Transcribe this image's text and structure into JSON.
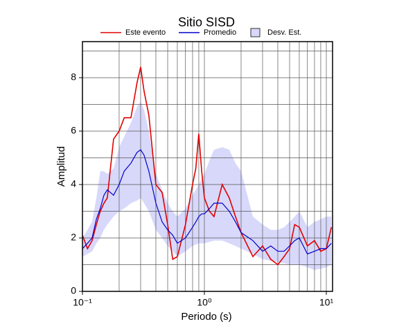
{
  "chart_data": {
    "type": "line",
    "title": "Sitio SISD",
    "x_label": "Periodo (s)",
    "y_label": "Amplitud",
    "x_scale": "log",
    "grid": true,
    "xlim": [
      0.1,
      11.25
    ],
    "ylim": [
      0,
      9.35
    ],
    "xticks": [
      {
        "value": 0.1,
        "label": "10⁻¹"
      },
      {
        "value": 1,
        "label": "10⁰"
      },
      {
        "value": 10,
        "label": "10¹"
      }
    ],
    "x_minor_ticks": [
      0.2,
      0.3,
      0.4,
      0.5,
      0.6,
      0.7,
      0.8,
      0.9,
      2,
      3,
      4,
      5,
      6,
      7,
      8,
      9
    ],
    "yticks": [
      0,
      2,
      4,
      6,
      8
    ],
    "y_minor_ticks": [
      1,
      3,
      5,
      7,
      9
    ],
    "x": [
      0.1,
      0.11,
      0.12,
      0.13,
      0.14,
      0.15,
      0.16,
      0.18,
      0.2,
      0.22,
      0.25,
      0.28,
      0.3,
      0.32,
      0.35,
      0.4,
      0.45,
      0.5,
      0.55,
      0.6,
      0.7,
      0.8,
      0.85,
      0.9,
      0.95,
      1.0,
      1.1,
      1.2,
      1.4,
      1.6,
      1.8,
      2.0,
      2.5,
      3.0,
      3.5,
      4.0,
      4.5,
      5.0,
      5.5,
      6.0,
      7.0,
      8.0,
      9.0,
      10.0,
      11.0
    ],
    "series": [
      {
        "name": "Este evento",
        "color": "#e00000",
        "values": [
          2.1,
          1.6,
          1.9,
          2.5,
          3.0,
          3.3,
          3.5,
          5.7,
          6.0,
          6.5,
          6.5,
          7.8,
          8.4,
          7.5,
          6.6,
          4.0,
          3.7,
          2.5,
          1.2,
          1.3,
          2.5,
          4.0,
          4.6,
          5.9,
          4.5,
          3.5,
          3.0,
          2.8,
          4.0,
          3.5,
          2.8,
          2.2,
          1.3,
          1.7,
          1.2,
          1.0,
          1.3,
          1.6,
          2.5,
          2.4,
          1.7,
          1.9,
          1.5,
          1.6,
          2.4
        ]
      },
      {
        "name": "Promedio",
        "color": "#0000cc",
        "values": [
          1.6,
          1.8,
          2.0,
          2.7,
          3.1,
          3.6,
          3.8,
          3.6,
          4.0,
          4.5,
          4.8,
          5.2,
          5.3,
          5.1,
          4.5,
          3.3,
          2.6,
          2.3,
          2.1,
          1.8,
          2.0,
          2.4,
          2.6,
          2.8,
          2.9,
          2.9,
          3.1,
          3.3,
          3.3,
          3.0,
          2.6,
          2.2,
          1.9,
          1.5,
          1.7,
          1.5,
          1.5,
          1.7,
          1.9,
          2.0,
          1.4,
          1.5,
          1.6,
          1.6,
          1.8
        ]
      }
    ],
    "band": {
      "name": "Desv. Est.",
      "color": "#d8d8fb",
      "lower": [
        1.3,
        1.4,
        1.5,
        1.8,
        2.0,
        2.3,
        2.5,
        2.8,
        3.0,
        3.1,
        3.3,
        3.4,
        3.5,
        3.3,
        3.0,
        2.3,
        2.0,
        1.7,
        1.5,
        1.3,
        1.5,
        1.7,
        1.75,
        1.8,
        1.8,
        1.8,
        1.85,
        1.9,
        1.9,
        1.8,
        1.7,
        1.6,
        1.4,
        1.2,
        1.15,
        1.1,
        1.05,
        1.0,
        1.0,
        1.0,
        0.9,
        0.8,
        0.85,
        0.9,
        1.0
      ],
      "upper": [
        2.0,
        2.3,
        2.6,
        3.5,
        4.5,
        4.5,
        4.4,
        4.6,
        5.4,
        5.8,
        6.3,
        6.9,
        7.1,
        6.8,
        6.0,
        4.4,
        3.8,
        3.3,
        3.0,
        2.8,
        3.1,
        3.6,
        3.8,
        4.0,
        4.2,
        4.4,
        4.9,
        5.3,
        5.4,
        5.3,
        4.8,
        4.5,
        2.8,
        2.5,
        2.3,
        2.3,
        2.4,
        2.6,
        2.8,
        3.0,
        2.4,
        2.6,
        2.7,
        2.8,
        2.8
      ]
    }
  }
}
